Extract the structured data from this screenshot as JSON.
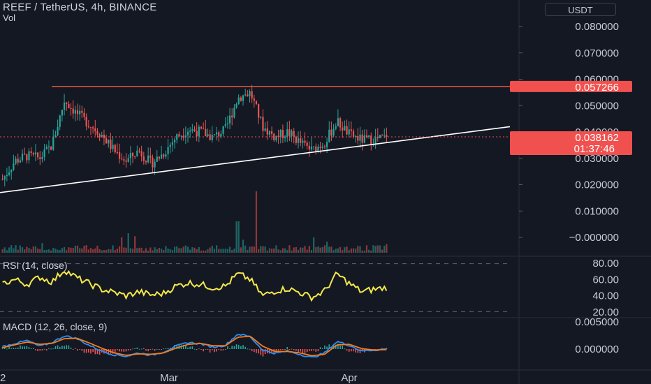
{
  "header": {
    "title": "REEF / TetherUS, 4h, BINANCE",
    "volume_label": "Vol",
    "currency_button": "USDT"
  },
  "rsi_pane": {
    "label": "RSI (14, close)"
  },
  "macd_pane": {
    "label": "MACD (12, 26, close, 9)"
  },
  "colors": {
    "background": "#141823",
    "up_candle": "#26a69a",
    "down_candle": "#ef5350",
    "resistance_line": "#f05a3c",
    "trend_line": "#ffffff",
    "rsi_line": "#f5e94a",
    "macd_line": "#2b8ef0",
    "signal_line": "#f57c1f",
    "price_tag": "#f0514f"
  },
  "chart_data": [
    {
      "type": "candlestick",
      "title": "REEF / TetherUS, 4h, BINANCE",
      "y_axis_ticks": [
        "0.080000",
        "0.070000",
        "0.060000",
        "0.050000",
        "0.040000",
        "0.030000",
        "0.020000",
        "0.010000",
        "−0.000000"
      ],
      "ylim": [
        0,
        0.085
      ],
      "x_axis_ticks": [
        "2",
        "Mar",
        "Apr"
      ],
      "closes_sampled": [
        0.022,
        0.029,
        0.031,
        0.03,
        0.035,
        0.052,
        0.047,
        0.043,
        0.039,
        0.033,
        0.029,
        0.033,
        0.028,
        0.032,
        0.038,
        0.041,
        0.04,
        0.038,
        0.041,
        0.053,
        0.055,
        0.042,
        0.038,
        0.04,
        0.036,
        0.033,
        0.036,
        0.044,
        0.039,
        0.037,
        0.037,
        0.038
      ],
      "resistance_level": 0.057266,
      "resistance_label": "0.057266",
      "last_price": 0.038162,
      "last_price_label": "0.038162",
      "countdown": "01:37:46",
      "trend_line": {
        "from": 0.017,
        "to": 0.042
      },
      "volume_note": "Vol"
    },
    {
      "type": "line",
      "title": "RSI (14, close)",
      "y_axis_ticks": [
        "80.00",
        "60.00",
        "40.00",
        "20.00"
      ],
      "ylim": [
        20,
        80
      ],
      "reference_levels": [
        70,
        30
      ],
      "values_sampled": [
        55,
        60,
        54,
        63,
        57,
        72,
        62,
        55,
        48,
        44,
        40,
        45,
        41,
        43,
        52,
        56,
        54,
        50,
        52,
        67,
        60,
        40,
        46,
        49,
        44,
        38,
        46,
        67,
        55,
        45,
        48,
        50
      ]
    },
    {
      "type": "line",
      "title": "MACD (12, 26, close, 9)",
      "y_axis_ticks": [
        "0.000000"
      ],
      "clipped_top_tick": "0.005000",
      "series": [
        {
          "name": "MACD",
          "values_sampled": [
            0.0005,
            0.0012,
            0.0018,
            0.0006,
            0.0014,
            0.0028,
            0.0022,
            0.0008,
            -0.0004,
            -0.0012,
            -0.0015,
            -0.0008,
            -0.0013,
            -0.0006,
            0.0006,
            0.0014,
            0.0011,
            0.0004,
            0.0008,
            0.0032,
            0.0026,
            -0.0002,
            -0.0009,
            -0.0004,
            -0.0011,
            -0.0018,
            -0.0008,
            0.0016,
            0.0008,
            -0.0004,
            -0.0002,
            0.0
          ]
        },
        {
          "name": "Signal",
          "values_sampled": [
            0.0003,
            0.0009,
            0.0015,
            0.001,
            0.0012,
            0.0022,
            0.0023,
            0.0013,
            0.0002,
            -0.0008,
            -0.0013,
            -0.001,
            -0.0011,
            -0.0008,
            0.0002,
            0.001,
            0.0012,
            0.0007,
            0.0007,
            0.0025,
            0.0027,
            0.0006,
            -0.0005,
            -0.0005,
            -0.0008,
            -0.0014,
            -0.0011,
            0.0009,
            0.001,
            0.0001,
            -0.0002,
            -0.0001
          ]
        }
      ]
    }
  ]
}
